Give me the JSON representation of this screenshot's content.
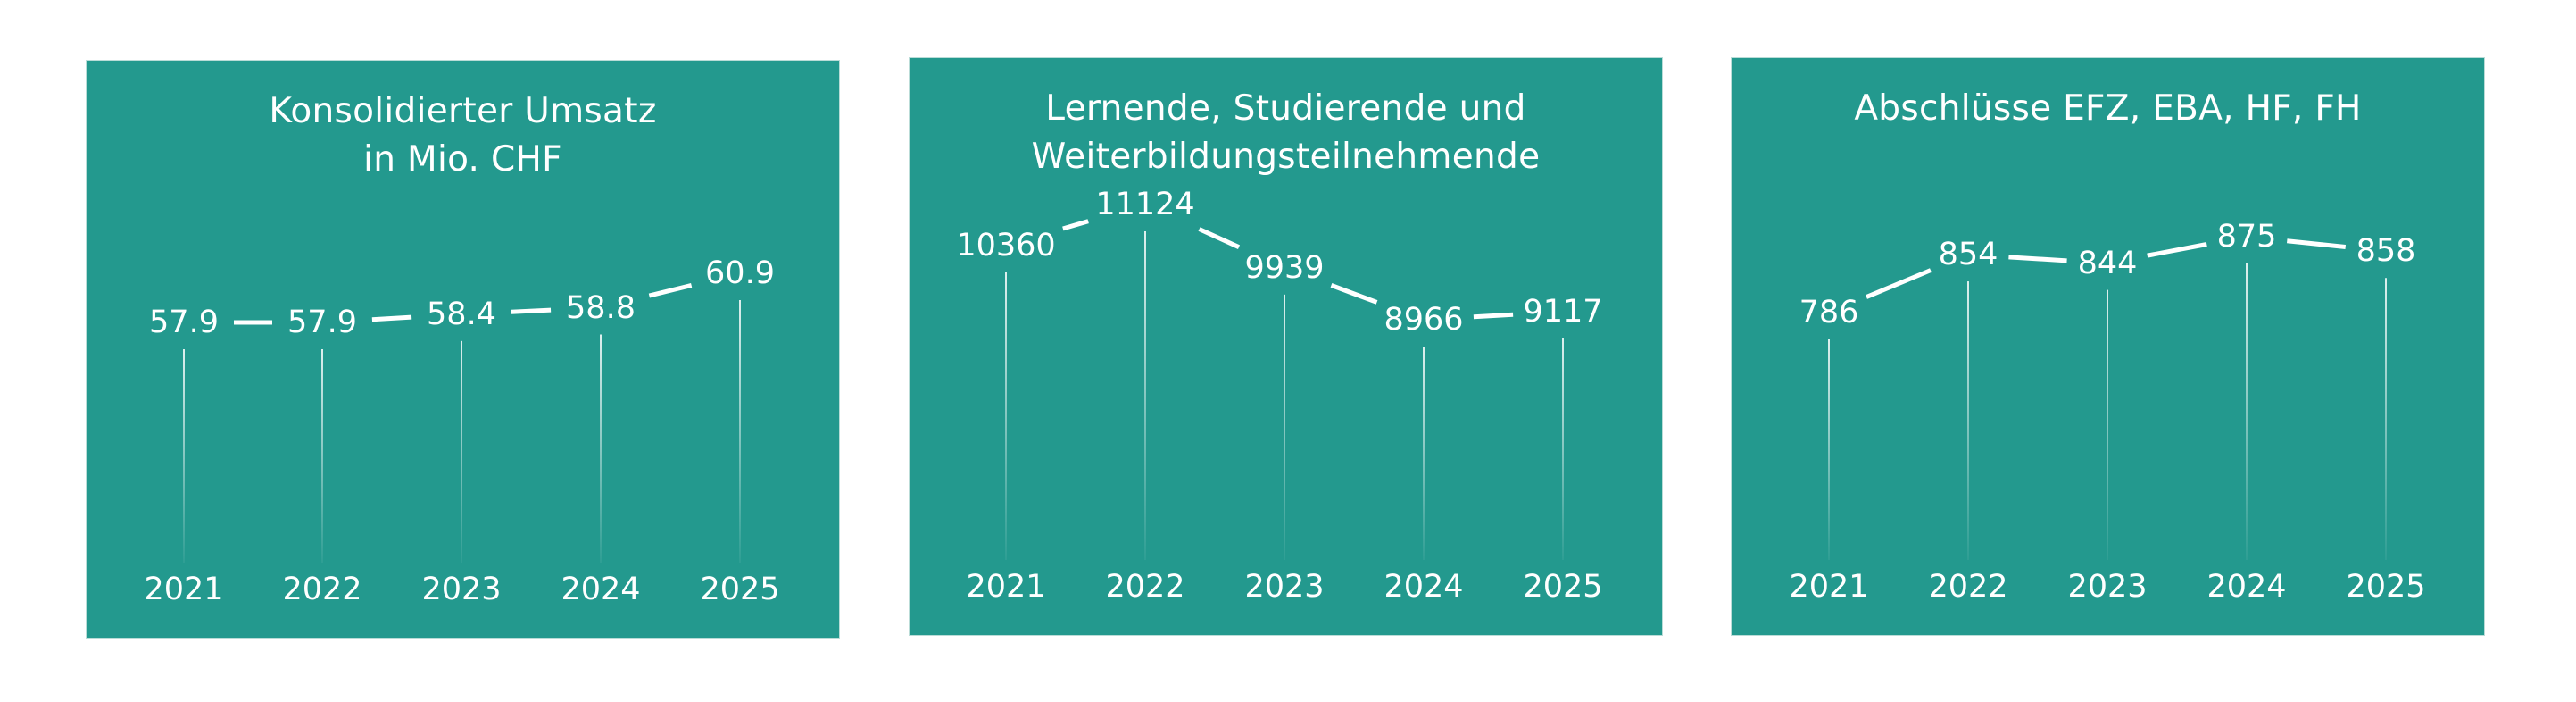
{
  "colors": {
    "panel": "#23998e",
    "text": "#ffffff",
    "line": "#ffffff"
  },
  "chart_data": [
    {
      "type": "line",
      "title": "Konsolidierter Umsatz\nin Mio. CHF",
      "categories": [
        "2021",
        "2022",
        "2023",
        "2024",
        "2025"
      ],
      "values": [
        57.9,
        57.9,
        58.4,
        58.8,
        60.9
      ],
      "labels": [
        "57.9",
        "57.9",
        "58.4",
        "58.8",
        "60.9"
      ]
    },
    {
      "type": "line",
      "title": "Lernende, Studierende und\nWeiterbildungsteilnehmende",
      "categories": [
        "2021",
        "2022",
        "2023",
        "2024",
        "2025"
      ],
      "values": [
        10360,
        11124,
        9939,
        8966,
        9117
      ],
      "labels": [
        "10360",
        "11124",
        "9939",
        "8966",
        "9117"
      ]
    },
    {
      "type": "line",
      "title": "Abschlüsse EFZ, EBA, HF, FH",
      "categories": [
        "2021",
        "2022",
        "2023",
        "2024",
        "2025"
      ],
      "values": [
        786,
        854,
        844,
        875,
        858
      ],
      "labels": [
        "786",
        "854",
        "844",
        "875",
        "858"
      ]
    }
  ]
}
